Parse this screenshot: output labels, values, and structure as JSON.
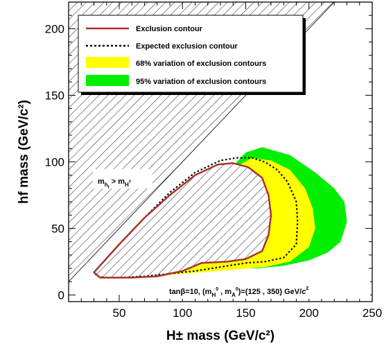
{
  "chart_data": {
    "type": "contour",
    "xlabel": "H± mass (GeV/c²)",
    "ylabel": "hf mass (GeV/c²)",
    "xlim": [
      10,
      250
    ],
    "ylim": [
      -5,
      220
    ],
    "x_ticks": [
      50,
      100,
      150,
      200,
      250
    ],
    "y_ticks": [
      0,
      50,
      100,
      150,
      200
    ],
    "legend_position": "top-left",
    "legend": [
      {
        "label": "Exclusion contour",
        "style": "line",
        "color": "#a8332b"
      },
      {
        "label": "Expected exclusion contour",
        "style": "dotted",
        "color": "#000000"
      },
      {
        "label": "68% variation of exclusion contours",
        "style": "fill",
        "color": "#ffff00"
      },
      {
        "label": "95% variation of exclusion contours",
        "style": "fill",
        "color": "#00ee00"
      }
    ],
    "forbidden_region_label": {
      "main": "m",
      "sub1": "h",
      "sub2": "f",
      "gt": " > m",
      "sub3": "H",
      "sup3": "±"
    },
    "annotation": {
      "text1": "tanβ=10, (m",
      "sub1": "H",
      "sup1": "0",
      "text2": " , m",
      "sub2": "A",
      "sup2": "0",
      "text3": ")=(125 , 350) GeV/",
      "unit_c": "c",
      "unit_pow": "2"
    },
    "series": [
      {
        "name": "95% variation of exclusion contours",
        "x": [
          30,
          50,
          70,
          90,
          110,
          120,
          135,
          150,
          163,
          185,
          205,
          220,
          228,
          230,
          225,
          215,
          200,
          180,
          160,
          140,
          120,
          100,
          80,
          60,
          45,
          35,
          30
        ],
        "y": [
          15,
          14,
          23,
          40,
          58,
          70,
          92,
          107,
          111,
          105,
          92,
          80,
          70,
          55,
          40,
          32,
          26,
          22,
          20,
          20,
          19,
          18,
          17,
          15,
          14,
          13,
          15
        ]
      },
      {
        "name": "68% variation of exclusion contours",
        "x": [
          30,
          50,
          70,
          90,
          110,
          125,
          140,
          155,
          170,
          185,
          197,
          203,
          205,
          200,
          185,
          165,
          140,
          115,
          90,
          65,
          45,
          35,
          30
        ],
        "y": [
          15,
          14,
          25,
          45,
          65,
          80,
          95,
          103,
          101,
          94,
          80,
          65,
          50,
          36,
          25,
          21,
          19,
          17,
          15,
          14,
          13,
          13,
          15
        ]
      },
      {
        "name": "Expected exclusion contour",
        "x": [
          30,
          50,
          70,
          90,
          110,
          130,
          143,
          155,
          165,
          175,
          183,
          190,
          191,
          190,
          180,
          165,
          150,
          130,
          110,
          90,
          70,
          50,
          40,
          33,
          30
        ],
        "y": [
          17,
          38,
          58,
          77,
          92,
          101,
          103,
          103,
          100,
          94,
          85,
          70,
          55,
          38,
          28,
          25,
          24,
          21,
          18,
          16,
          14,
          13,
          13,
          14,
          17
        ],
        "style": "dotted"
      },
      {
        "name": "Exclusion contour",
        "x": [
          30,
          50,
          70,
          90,
          110,
          128,
          140,
          152,
          163,
          168,
          170,
          168,
          163,
          150,
          135,
          115,
          100,
          80,
          60,
          45,
          35,
          30
        ],
        "y": [
          17,
          38,
          58,
          75,
          90,
          98,
          99,
          96,
          88,
          75,
          60,
          45,
          33,
          27,
          25,
          24,
          18,
          14,
          13,
          13,
          13,
          17
        ]
      }
    ]
  }
}
